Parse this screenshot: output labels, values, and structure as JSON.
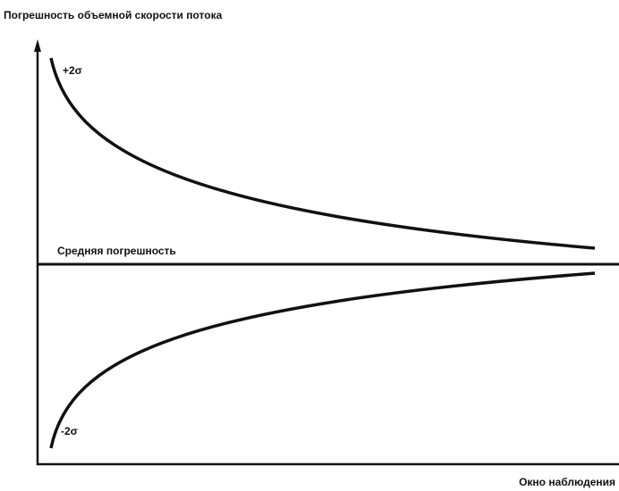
{
  "y_axis_label": "Погрешность объемной скорости потока",
  "x_axis_label": "Окно наблюдения",
  "mean_label": "Средняя погрешность",
  "upper_label": "+2σ",
  "lower_label": "-2σ"
}
